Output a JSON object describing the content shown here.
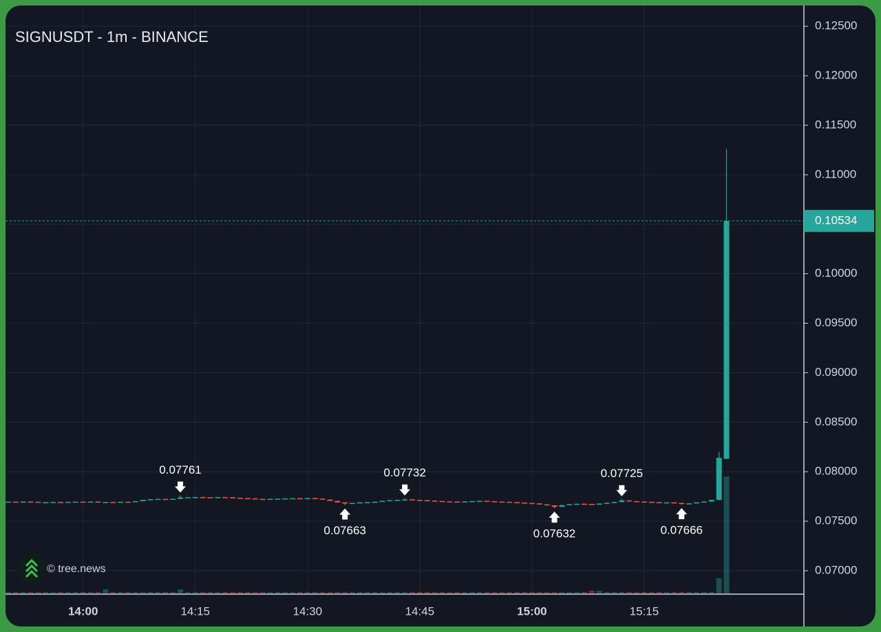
{
  "chart_data": {
    "type": "candlestick",
    "title": "SIGNUSDT - 1m - BINANCE",
    "watermark": "© tree.news",
    "up_color": "#26a69a",
    "down_color": "#ef5350",
    "categories": [
      "13:50",
      "13:51",
      "13:52",
      "13:53",
      "13:54",
      "13:55",
      "13:56",
      "13:57",
      "13:58",
      "13:59",
      "14:00",
      "14:01",
      "14:02",
      "14:03",
      "14:04",
      "14:05",
      "14:06",
      "14:07",
      "14:08",
      "14:09",
      "14:10",
      "14:11",
      "14:12",
      "14:13",
      "14:14",
      "14:15",
      "14:16",
      "14:17",
      "14:18",
      "14:19",
      "14:20",
      "14:21",
      "14:22",
      "14:23",
      "14:24",
      "14:25",
      "14:26",
      "14:27",
      "14:28",
      "14:29",
      "14:30",
      "14:31",
      "14:32",
      "14:33",
      "14:34",
      "14:35",
      "14:36",
      "14:37",
      "14:38",
      "14:39",
      "14:40",
      "14:41",
      "14:42",
      "14:43",
      "14:44",
      "14:45",
      "14:46",
      "14:47",
      "14:48",
      "14:49",
      "14:50",
      "14:51",
      "14:52",
      "14:53",
      "14:54",
      "14:55",
      "14:56",
      "14:57",
      "14:58",
      "14:59",
      "15:00",
      "15:01",
      "15:02",
      "15:03",
      "15:04",
      "15:05",
      "15:06",
      "15:07",
      "15:08",
      "15:09",
      "15:10",
      "15:11",
      "15:12",
      "15:13",
      "15:14",
      "15:15",
      "15:16",
      "15:17",
      "15:18",
      "15:19",
      "15:20",
      "15:21",
      "15:22",
      "15:23",
      "15:24",
      "15:25",
      "15:26"
    ],
    "open": [
      0.07694,
      0.07697,
      0.07695,
      0.07698,
      0.07696,
      0.0769,
      0.07692,
      0.07694,
      0.07693,
      0.07695,
      0.07697,
      0.07694,
      0.07698,
      0.07692,
      0.07694,
      0.0769,
      0.07696,
      0.07695,
      0.07702,
      0.07715,
      0.07722,
      0.07725,
      0.0772,
      0.07726,
      0.0774,
      0.07742,
      0.07744,
      0.07742,
      0.0774,
      0.07743,
      0.07741,
      0.07736,
      0.07733,
      0.0773,
      0.07725,
      0.07722,
      0.07726,
      0.07728,
      0.0773,
      0.07732,
      0.07731,
      0.07733,
      0.07728,
      0.07718,
      0.07705,
      0.0769,
      0.07678,
      0.07684,
      0.0769,
      0.07692,
      0.07696,
      0.07705,
      0.07712,
      0.07715,
      0.0772,
      0.07714,
      0.07712,
      0.07708,
      0.07704,
      0.077,
      0.07698,
      0.07697,
      0.07699,
      0.07703,
      0.07706,
      0.07702,
      0.07698,
      0.07696,
      0.07692,
      0.07688,
      0.07684,
      0.0768,
      0.0767,
      0.0766,
      0.07645,
      0.07662,
      0.07672,
      0.07676,
      0.07674,
      0.0767,
      0.07678,
      0.07686,
      0.07694,
      0.0771,
      0.07702,
      0.07698,
      0.07696,
      0.07692,
      0.07688,
      0.0769,
      0.07684,
      0.07676,
      0.0768,
      0.0769,
      0.07698,
      0.07715,
      0.0813
    ],
    "high": [
      0.07699,
      0.07699,
      0.077,
      0.077,
      0.07698,
      0.07694,
      0.07696,
      0.07696,
      0.07697,
      0.07699,
      0.07699,
      0.077,
      0.077,
      0.07696,
      0.07696,
      0.07698,
      0.07698,
      0.07704,
      0.07717,
      0.07724,
      0.07727,
      0.07727,
      0.07728,
      0.07761,
      0.07744,
      0.07746,
      0.07746,
      0.07744,
      0.07745,
      0.07745,
      0.07743,
      0.07738,
      0.07735,
      0.07732,
      0.07727,
      0.07728,
      0.0773,
      0.07732,
      0.07734,
      0.07734,
      0.07735,
      0.07735,
      0.0773,
      0.0772,
      0.07707,
      0.07692,
      0.07686,
      0.07692,
      0.07694,
      0.07698,
      0.07707,
      0.07714,
      0.07717,
      0.07732,
      0.07722,
      0.07716,
      0.07714,
      0.0771,
      0.07706,
      0.07702,
      0.077,
      0.07701,
      0.07705,
      0.07708,
      0.07708,
      0.07704,
      0.077,
      0.07698,
      0.07694,
      0.0769,
      0.07686,
      0.07682,
      0.07672,
      0.07662,
      0.07664,
      0.07674,
      0.07678,
      0.07678,
      0.07676,
      0.0768,
      0.07688,
      0.07696,
      0.07725,
      0.07712,
      0.07704,
      0.077,
      0.07698,
      0.07694,
      0.07692,
      0.07692,
      0.07686,
      0.07682,
      0.07692,
      0.077,
      0.07717,
      0.082,
      0.11261
    ],
    "low": [
      0.07692,
      0.07693,
      0.07693,
      0.07694,
      0.07688,
      0.07688,
      0.0769,
      0.07691,
      0.07691,
      0.07693,
      0.07692,
      0.07692,
      0.0769,
      0.0769,
      0.07688,
      0.07688,
      0.07693,
      0.07693,
      0.077,
      0.07713,
      0.0772,
      0.07718,
      0.07718,
      0.07724,
      0.07738,
      0.0774,
      0.0774,
      0.07738,
      0.07738,
      0.07739,
      0.07734,
      0.07731,
      0.07728,
      0.07723,
      0.0772,
      0.0772,
      0.07724,
      0.07726,
      0.07728,
      0.07729,
      0.07729,
      0.07726,
      0.07716,
      0.07703,
      0.07688,
      0.07663,
      0.07676,
      0.07682,
      0.07688,
      0.0769,
      0.07694,
      0.07703,
      0.0771,
      0.07713,
      0.07712,
      0.0771,
      0.07706,
      0.07702,
      0.07698,
      0.07696,
      0.07695,
      0.07695,
      0.07697,
      0.07701,
      0.077,
      0.07696,
      0.07694,
      0.0769,
      0.07686,
      0.07682,
      0.07678,
      0.07668,
      0.07658,
      0.07632,
      0.07643,
      0.0766,
      0.0767,
      0.07672,
      0.07668,
      0.07668,
      0.07676,
      0.07684,
      0.07692,
      0.077,
      0.07696,
      0.07694,
      0.0769,
      0.07686,
      0.07686,
      0.07682,
      0.07666,
      0.07674,
      0.07678,
      0.07688,
      0.07696,
      0.0771,
      0.0813
    ],
    "close": [
      0.07697,
      0.07695,
      0.07698,
      0.07696,
      0.0769,
      0.07692,
      0.07694,
      0.07693,
      0.07695,
      0.07697,
      0.07694,
      0.07698,
      0.07692,
      0.07694,
      0.0769,
      0.07696,
      0.07695,
      0.07702,
      0.07715,
      0.07722,
      0.07725,
      0.0772,
      0.07726,
      0.0774,
      0.07742,
      0.07744,
      0.07742,
      0.0774,
      0.07743,
      0.07741,
      0.07736,
      0.07733,
      0.0773,
      0.07725,
      0.07722,
      0.07726,
      0.07728,
      0.0773,
      0.07732,
      0.07731,
      0.07733,
      0.07728,
      0.07718,
      0.07705,
      0.0769,
      0.07678,
      0.07684,
      0.0769,
      0.07692,
      0.07696,
      0.07705,
      0.07712,
      0.07715,
      0.0772,
      0.07714,
      0.07712,
      0.07708,
      0.07704,
      0.077,
      0.07698,
      0.07697,
      0.07699,
      0.07703,
      0.07706,
      0.07702,
      0.07698,
      0.07696,
      0.07692,
      0.07688,
      0.07684,
      0.0768,
      0.0767,
      0.0766,
      0.07645,
      0.07662,
      0.07672,
      0.07676,
      0.07674,
      0.0767,
      0.07678,
      0.07686,
      0.07694,
      0.0771,
      0.07702,
      0.07698,
      0.07696,
      0.07692,
      0.07688,
      0.0769,
      0.07684,
      0.07676,
      0.0768,
      0.0769,
      0.07698,
      0.07715,
      0.0814,
      0.10534
    ],
    "volume": [
      1,
      1,
      1,
      1,
      1,
      1,
      1,
      1,
      1,
      1,
      1,
      1,
      1,
      3,
      1,
      1,
      1,
      1,
      1,
      1,
      1,
      1,
      1,
      3,
      1,
      1,
      1,
      1,
      1,
      1,
      1,
      1,
      1,
      1,
      1,
      1,
      1,
      1,
      1,
      1,
      1,
      1,
      1,
      1,
      1,
      1,
      1,
      1,
      1,
      1,
      1,
      1,
      1,
      1,
      1,
      1,
      1,
      1,
      1,
      1,
      1,
      1,
      1,
      1,
      1,
      1,
      1,
      1,
      1,
      1,
      1,
      1,
      1,
      1,
      1,
      1,
      1,
      1,
      2,
      2,
      1,
      1,
      1,
      1,
      1,
      1,
      1,
      1,
      1,
      1,
      1,
      1,
      1,
      1,
      1,
      11,
      85
    ],
    "markers": [
      {
        "x": "14:13",
        "at": "high"
      },
      {
        "x": "14:35",
        "at": "low"
      },
      {
        "x": "14:43",
        "at": "high"
      },
      {
        "x": "15:03",
        "at": "low"
      },
      {
        "x": "15:12",
        "at": "high"
      },
      {
        "x": "15:20",
        "at": "low"
      }
    ],
    "xticks": [
      "14:00",
      "14:15",
      "14:30",
      "14:45",
      "15:00",
      "15:15"
    ],
    "ylim": [
      0.0677,
      0.1271
    ],
    "yticks": [
      {
        "value": 0.07,
        "label": "0.07000"
      },
      {
        "value": 0.075,
        "label": "0.07500"
      },
      {
        "value": 0.08,
        "label": "0.08000"
      },
      {
        "value": 0.085,
        "label": "0.08500"
      },
      {
        "value": 0.09,
        "label": "0.09000"
      },
      {
        "value": 0.095,
        "label": "0.09500"
      },
      {
        "value": 0.1,
        "label": "0.10000"
      },
      {
        "value": 0.105,
        "label": "0.10500"
      },
      {
        "value": 0.11,
        "label": "0.11000"
      },
      {
        "value": 0.115,
        "label": "0.11500"
      },
      {
        "value": 0.12,
        "label": "0.12000"
      },
      {
        "value": 0.125,
        "label": "0.12500"
      }
    ],
    "grid": true
  }
}
